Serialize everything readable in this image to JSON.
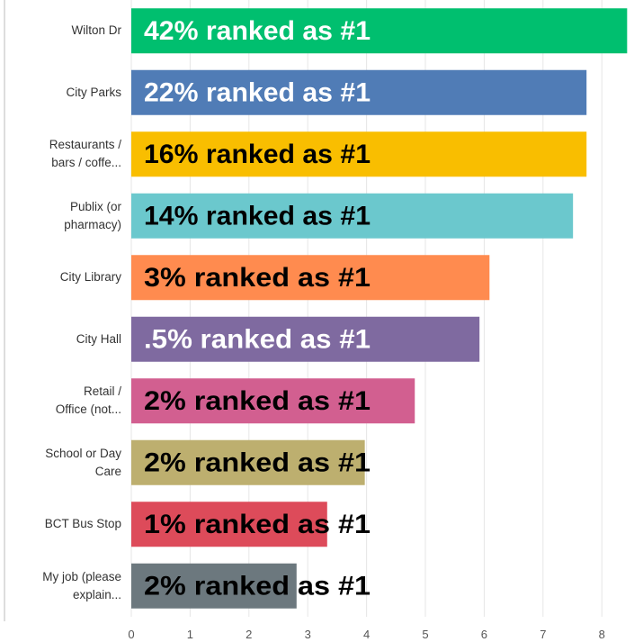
{
  "chart_data": {
    "type": "barh",
    "categories": [
      "Wilton Dr",
      "City Parks",
      "Restaurants /\nbars / coffe...",
      "Publix (or\npharmacy)",
      "City Library",
      "City Hall",
      "Retail /\nOffice (not...",
      "School or Day\nCare",
      "BCT Bus Stop",
      "My job (please\nexplain..."
    ],
    "values": [
      8.43,
      7.74,
      7.74,
      7.51,
      6.09,
      5.92,
      4.82,
      3.97,
      3.33,
      2.81
    ],
    "colors": [
      "#00bf6f",
      "#507cb6",
      "#f9be00",
      "#6bc8cd",
      "#ff8b4f",
      "#7f6aa0",
      "#d25f90",
      "#bdaf6f",
      "#dd4b5a",
      "#6c787e"
    ],
    "annotations": [
      "42% ranked as #1",
      "22% ranked as #1",
      "16% ranked as #1",
      "14% ranked as #1",
      "3% ranked as #1",
      ".5% ranked as #1",
      "2% ranked as #1",
      "2% ranked as #1",
      "1% ranked as #1",
      "2% ranked as #1"
    ],
    "annotation_colors": [
      "#ffffff",
      "#ffffff",
      "#000000",
      "#000000",
      "#000000",
      "#ffffff",
      "#000000",
      "#000000",
      "#000000",
      "#000000"
    ],
    "xlim": [
      0,
      8.7
    ],
    "xticks": [
      0,
      1,
      2,
      3,
      4,
      5,
      6,
      7,
      8
    ],
    "grid": true
  }
}
